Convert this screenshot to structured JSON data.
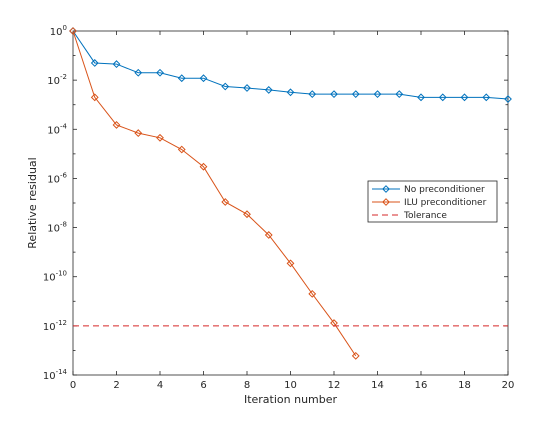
{
  "chart_data": {
    "type": "line",
    "title": "",
    "xlabel": "Iteration number",
    "ylabel": "Relative residual",
    "xlim": [
      0,
      20
    ],
    "ylim_exponent": [
      -14,
      0
    ],
    "yscale": "log",
    "xticks": [
      "0",
      "2",
      "4",
      "6",
      "8",
      "10",
      "12",
      "14",
      "16",
      "18",
      "20"
    ],
    "ytick_base": "10",
    "ytick_exponents": [
      "0",
      "-2",
      "-4",
      "-6",
      "-8",
      "-10",
      "-12",
      "-14"
    ],
    "grid": false,
    "legend_position": "right",
    "series": [
      {
        "name": "No preconditioner",
        "color": "#0072bd",
        "marker": "diamond",
        "line_style": "solid",
        "x": [
          0,
          1,
          2,
          3,
          4,
          5,
          6,
          7,
          8,
          9,
          10,
          11,
          12,
          13,
          14,
          15,
          16,
          17,
          18,
          19,
          20
        ],
        "y": [
          1,
          0.05,
          0.045,
          0.02,
          0.02,
          0.012,
          0.012,
          0.0055,
          0.0048,
          0.004,
          0.0032,
          0.0027,
          0.0027,
          0.0027,
          0.0027,
          0.0027,
          0.002,
          0.002,
          0.002,
          0.002,
          0.0017
        ]
      },
      {
        "name": "ILU preconditioner",
        "color": "#d95319",
        "marker": "diamond",
        "line_style": "solid",
        "x": [
          0,
          1,
          2,
          3,
          4,
          5,
          6,
          7,
          8,
          9,
          10,
          11,
          12,
          13
        ],
        "y": [
          1,
          0.002,
          0.00015,
          7e-05,
          4.5e-05,
          1.5e-05,
          3e-06,
          1.1e-07,
          3.5e-08,
          5e-09,
          3.5e-10,
          2e-11,
          1.3e-12,
          6e-14
        ]
      },
      {
        "name": "Tolerance",
        "color": "#d62728",
        "marker": "none",
        "line_style": "dashed",
        "x": [
          0,
          20
        ],
        "y": [
          1e-12,
          1e-12
        ]
      }
    ]
  }
}
